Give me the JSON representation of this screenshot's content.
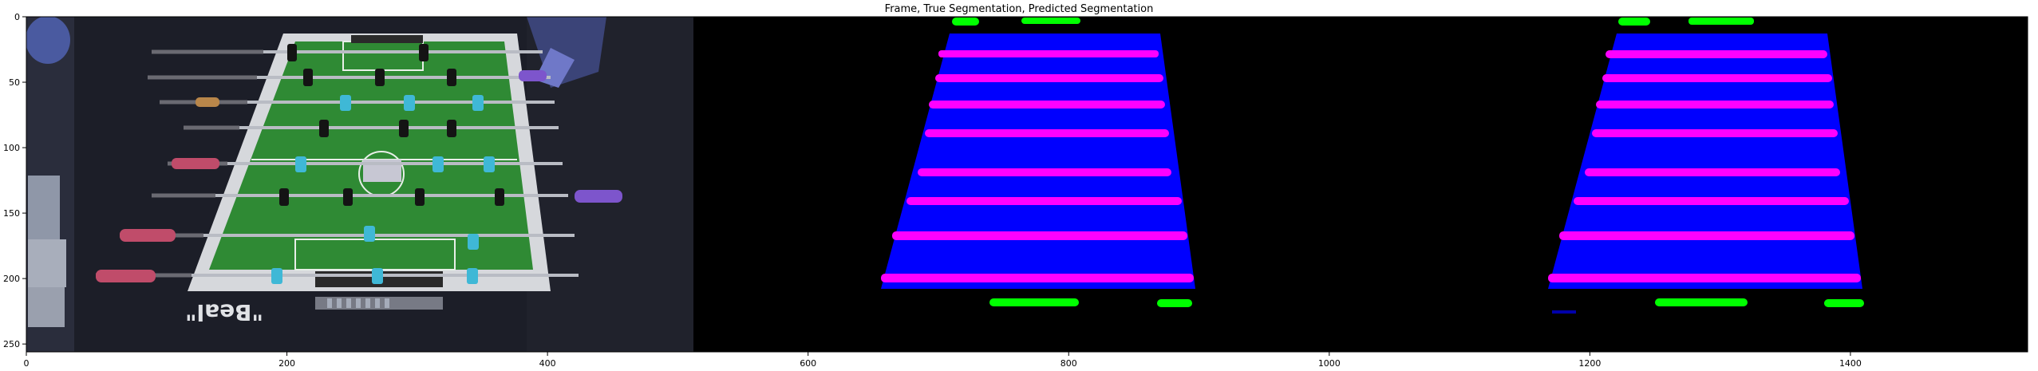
{
  "figure": {
    "title": "Frame, True Segmentation, Predicted Segmentation"
  },
  "axes": {
    "x_ticks": [
      {
        "value": 0,
        "label": "0"
      },
      {
        "value": 200,
        "label": "200"
      },
      {
        "value": 400,
        "label": "400"
      },
      {
        "value": 600,
        "label": "600"
      },
      {
        "value": 800,
        "label": "800"
      },
      {
        "value": 1000,
        "label": "1000"
      },
      {
        "value": 1200,
        "label": "1200"
      },
      {
        "value": 1400,
        "label": "1400"
      }
    ],
    "y_ticks": [
      {
        "value": 0,
        "label": "0"
      },
      {
        "value": 50,
        "label": "50"
      },
      {
        "value": 100,
        "label": "100"
      },
      {
        "value": 150,
        "label": "150"
      },
      {
        "value": 200,
        "label": "200"
      },
      {
        "value": 250,
        "label": "250"
      }
    ],
    "x_range": [
      0,
      1536
    ],
    "y_range": [
      0,
      256
    ]
  },
  "photo": {
    "table_brand": "\"Beal\""
  },
  "segmentation_colors": {
    "background": "#000000",
    "table": "#0000ff",
    "rods": "#ff00ff",
    "goals": "#00ff00"
  }
}
